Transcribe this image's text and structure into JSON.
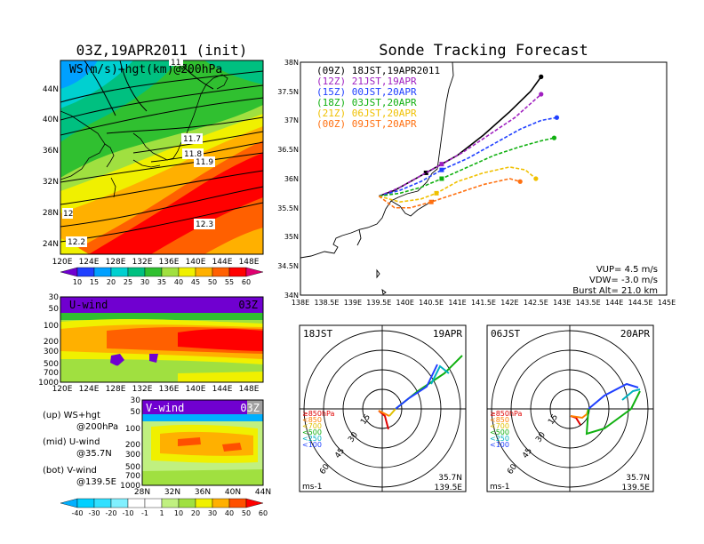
{
  "map_panel": {
    "title": "03Z,19APR2011 (init)",
    "label": "WS(m/s)+hgt(km)@200hPa",
    "lat_ticks": [
      "44N",
      "40N",
      "36N",
      "32N",
      "28N",
      "24N"
    ],
    "lon_ticks": [
      "120E",
      "124E",
      "128E",
      "132E",
      "136E",
      "140E",
      "144E",
      "148E"
    ],
    "hgt_labels": [
      "11.7",
      "11.8",
      "11.9",
      "12.3",
      "12.2",
      "12",
      "11"
    ],
    "colorbar": [
      "10",
      "15",
      "20",
      "25",
      "30",
      "35",
      "40",
      "45",
      "50",
      "55",
      "60"
    ]
  },
  "u_panel": {
    "label": "U-wind",
    "time": "03Z",
    "p_ticks": [
      "30",
      "50",
      "100",
      "200",
      "300",
      "500",
      "700",
      "1000"
    ],
    "lon_ticks": [
      "120E",
      "124E",
      "128E",
      "132E",
      "136E",
      "140E",
      "144E",
      "148E"
    ]
  },
  "v_panel": {
    "label": "V-wind",
    "time": "03Z",
    "p_ticks": [
      "30",
      "50",
      "100",
      "200",
      "300",
      "500",
      "700",
      "1000"
    ],
    "lat_ticks": [
      "28N",
      "32N",
      "36N",
      "40N",
      "44N"
    ]
  },
  "notes": [
    {
      "a": "(up) WS+hgt",
      "b": "@200hPa"
    },
    {
      "a": "(mid) U-wind",
      "b": "@35.7N"
    },
    {
      "a": "(bot) V-wind",
      "b": "@139.5E"
    }
  ],
  "bottom_colorbar": [
    "-40",
    "-30",
    "-20",
    "-10",
    "-1",
    "1",
    "10",
    "20",
    "30",
    "40",
    "50",
    "60"
  ],
  "track": {
    "title": "Sonde Tracking Forecast",
    "lat_ticks": [
      "38N",
      "37.5N",
      "37N",
      "36.5N",
      "36N",
      "35.5N",
      "35N",
      "34.5N",
      "34N"
    ],
    "lon_ticks": [
      "138E",
      "138.5E",
      "139E",
      "139.5E",
      "140E",
      "140.5E",
      "141E",
      "141.5E",
      "142E",
      "142.5E",
      "143E",
      "143.5E",
      "144E",
      "144.5E",
      "145E"
    ],
    "legend": [
      {
        "z": "(09Z)",
        "t": "18JST,19APR2011",
        "color": "#000000"
      },
      {
        "z": "(12Z)",
        "t": "21JST,19APR",
        "color": "#a020c0"
      },
      {
        "z": "(15Z)",
        "t": "00JST,20APR",
        "color": "#2040ff"
      },
      {
        "z": "(18Z)",
        "t": "03JST,20APR",
        "color": "#10b010"
      },
      {
        "z": "(21Z)",
        "t": "06JST,20APR",
        "color": "#f0c000"
      },
      {
        "z": "(00Z)",
        "t": "09JST,20APR",
        "color": "#ff7010"
      }
    ],
    "params": [
      "VUP= 4.5 m/s",
      "VDW= -3.0 m/s",
      "Burst Alt= 21.0 km"
    ]
  },
  "chart_data": {
    "type": "line",
    "title": "Sonde Tracking Forecast",
    "xlabel": "",
    "ylabel": "",
    "xlim": [
      138,
      145
    ],
    "ylim": [
      34,
      38
    ],
    "launch": [
      139.5,
      35.7
    ],
    "series": [
      {
        "name": "18JST,19APR2011",
        "x": [
          139.5,
          139.8,
          140.1,
          140.4,
          140.7,
          141.0,
          141.5,
          142.0,
          142.4,
          142.6
        ],
        "y": [
          35.7,
          35.8,
          35.95,
          36.1,
          36.25,
          36.4,
          36.75,
          37.15,
          37.5,
          37.75
        ]
      },
      {
        "name": "21JST,19APR",
        "x": [
          139.5,
          139.9,
          140.3,
          140.7,
          141.1,
          141.6,
          142.1,
          142.6
        ],
        "y": [
          35.7,
          35.85,
          36.05,
          36.25,
          36.45,
          36.75,
          37.05,
          37.45
        ]
      },
      {
        "name": "00JST,20APR",
        "x": [
          139.5,
          139.9,
          140.3,
          140.7,
          141.2,
          141.7,
          142.2,
          142.6,
          142.9
        ],
        "y": [
          35.7,
          35.8,
          35.95,
          36.15,
          36.35,
          36.6,
          36.85,
          37.0,
          37.05
        ]
      },
      {
        "name": "03JST,20APR",
        "x": [
          139.5,
          139.9,
          140.3,
          140.7,
          141.2,
          141.7,
          142.2,
          142.6,
          142.85
        ],
        "y": [
          35.7,
          35.75,
          35.85,
          36.0,
          36.2,
          36.4,
          36.55,
          36.65,
          36.7
        ]
      },
      {
        "name": "06JST,20APR",
        "x": [
          139.5,
          139.9,
          140.3,
          140.6,
          141.0,
          141.5,
          142.0,
          142.3,
          142.5
        ],
        "y": [
          35.7,
          35.6,
          35.65,
          35.75,
          35.95,
          36.1,
          36.2,
          36.15,
          36.0
        ]
      },
      {
        "name": "09JST,20APR",
        "x": [
          139.5,
          139.8,
          140.1,
          140.5,
          141.0,
          141.5,
          142.0,
          142.2
        ],
        "y": [
          35.7,
          35.5,
          35.5,
          35.6,
          35.75,
          35.9,
          36.0,
          35.95
        ]
      }
    ],
    "params": {
      "VUP": "4.5 m/s",
      "VDW": "-3.0 m/s",
      "Burst Alt": "21.0 km"
    }
  },
  "hodo_left": {
    "left": "18JST",
    "right": "19APR",
    "ring_labels": [
      "15",
      "30",
      "45",
      "60"
    ],
    "loc1": "35.7N",
    "loc2": "139.5E",
    "unit": "ms-1"
  },
  "hodo_right": {
    "left": "06JST",
    "right": "20APR",
    "ring_labels": [
      "15",
      "30",
      "45",
      "60"
    ],
    "loc1": "35.7N",
    "loc2": "139.5E",
    "unit": "ms-1"
  },
  "hodo_legend": [
    {
      "t": "≥850hPa",
      "color": "#e00000"
    },
    {
      "t": "<850",
      "color": "#ff8000"
    },
    {
      "t": "<700",
      "color": "#e0c000"
    },
    {
      "t": "<500",
      "color": "#10b010"
    },
    {
      "t": "<250",
      "color": "#00b0c0"
    },
    {
      "t": "<100",
      "color": "#2040ff"
    }
  ],
  "colors": {
    "ws": [
      "#7000d0",
      "#2040ff",
      "#00a0ff",
      "#00d0d0",
      "#00c080",
      "#30c030",
      "#a0e040",
      "#f0f000",
      "#ffb000",
      "#ff6000",
      "#ff0000",
      "#e00070"
    ],
    "div": [
      "#00b0ff",
      "#00d0ff",
      "#30e0ff",
      "#80f0ff",
      "#ffffff",
      "#ffffff",
      "#c0f080",
      "#a0e040",
      "#f0f000",
      "#ffb000",
      "#ff5000",
      "#ff0000"
    ]
  }
}
